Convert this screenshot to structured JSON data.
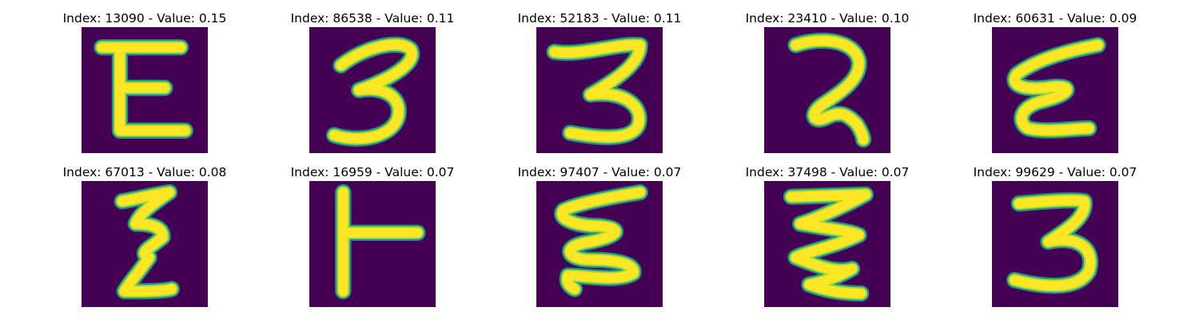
{
  "colors": {
    "background": "#440154",
    "stroke_core": "#fde725",
    "stroke_mid": "#a0da39",
    "stroke_edge": "#21918c"
  },
  "panels": [
    {
      "title": "Index: 13090 - Value: 0.15",
      "glyph": "letter-E"
    },
    {
      "title": "Index: 86538 - Value: 0.11",
      "glyph": "digit-3"
    },
    {
      "title": "Index: 52183 - Value: 0.11",
      "glyph": "digit-3"
    },
    {
      "title": "Index: 23410 - Value: 0.10",
      "glyph": "looped-2"
    },
    {
      "title": "Index: 60631 - Value: 0.09",
      "glyph": "epsilon"
    },
    {
      "title": "Index: 67013 - Value: 0.08",
      "glyph": "zigzag"
    },
    {
      "title": "Index: 16959 - Value: 0.07",
      "glyph": "T-shape"
    },
    {
      "title": "Index: 97407 - Value: 0.07",
      "glyph": "epsilon"
    },
    {
      "title": "Index: 37498 - Value: 0.07",
      "glyph": "zigzag"
    },
    {
      "title": "Index: 99629 - Value: 0.07",
      "glyph": "digit-3"
    }
  ]
}
